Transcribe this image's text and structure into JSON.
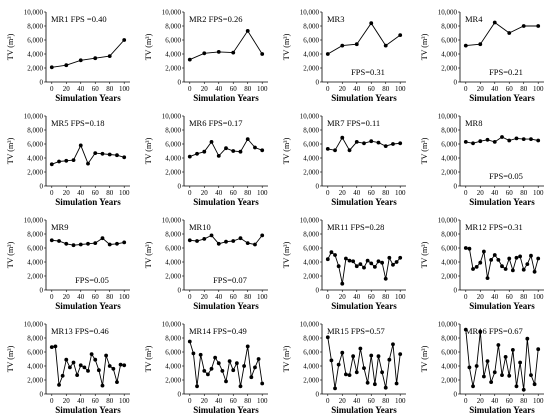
{
  "figure": {
    "y_axis_label": "TV (m³)",
    "x_axis_label": "Simulation Years",
    "y_tick_labels": [
      "0",
      "2,000",
      "4,000",
      "6,000",
      "8,000",
      "10,000"
    ],
    "x_tick_labels": [
      "0",
      "20",
      "40",
      "60",
      "80",
      "100"
    ]
  },
  "chart_data": [
    {
      "type": "line",
      "panel": "MR1",
      "fps": "FPS =0.40",
      "label_text": "MR1  FPS =0.40",
      "label_pos": "top-left",
      "x": [
        0,
        20,
        40,
        60,
        80,
        100
      ],
      "y": [
        2100,
        2400,
        3100,
        3400,
        3700,
        6000
      ],
      "xlabel": "Simulation Years",
      "ylabel": "TV (m³)",
      "xlim": [
        -8,
        108
      ],
      "ylim": [
        0,
        10000
      ],
      "grid": false
    },
    {
      "type": "line",
      "panel": "MR2",
      "fps": "FPS=0.26",
      "label_text": "MR2  FPS=0.26",
      "label_pos": "top-left",
      "x": [
        0,
        20,
        40,
        60,
        80,
        100
      ],
      "y": [
        3200,
        4100,
        4300,
        4200,
        7300,
        4000
      ],
      "xlabel": "Simulation Years",
      "ylabel": "TV (m³)",
      "xlim": [
        -8,
        108
      ],
      "ylim": [
        0,
        10000
      ],
      "grid": false
    },
    {
      "type": "line",
      "panel": "MR3",
      "fps": "FPS=0.31",
      "label_text": "MR3",
      "fps_pos": "bottom",
      "label_pos": "top-left",
      "x": [
        0,
        20,
        40,
        60,
        80,
        100
      ],
      "y": [
        4000,
        5200,
        5400,
        8400,
        5200,
        6700
      ],
      "xlabel": "Simulation Years",
      "ylabel": "TV (m³)",
      "xlim": [
        -8,
        108
      ],
      "ylim": [
        0,
        10000
      ],
      "grid": false
    },
    {
      "type": "line",
      "panel": "MR4",
      "fps": "FPS=0.21",
      "label_text": "MR4",
      "fps_pos": "bottom",
      "label_pos": "top-left",
      "x": [
        0,
        20,
        40,
        60,
        80,
        100
      ],
      "y": [
        5200,
        5400,
        8500,
        7000,
        8000,
        8000
      ],
      "xlabel": "Simulation Years",
      "ylabel": "TV (m³)",
      "xlim": [
        -8,
        108
      ],
      "ylim": [
        0,
        10000
      ],
      "grid": false
    },
    {
      "type": "line",
      "panel": "MR5",
      "fps": "FPS=0.18",
      "label_text": "MR5  FPS=0.18",
      "label_pos": "top-left",
      "x": [
        0,
        10,
        20,
        30,
        40,
        50,
        60,
        70,
        80,
        90,
        100
      ],
      "y": [
        3100,
        3500,
        3600,
        3700,
        5800,
        3200,
        4700,
        4600,
        4500,
        4400,
        4100
      ],
      "xlabel": "Simulation Years",
      "ylabel": "TV (m³)",
      "xlim": [
        -8,
        108
      ],
      "ylim": [
        0,
        10000
      ],
      "grid": false
    },
    {
      "type": "line",
      "panel": "MR6",
      "fps": "FPS=0.17",
      "label_text": "MR6  FPS=0.17",
      "label_pos": "top-left",
      "x": [
        0,
        10,
        20,
        30,
        40,
        50,
        60,
        70,
        80,
        90,
        100
      ],
      "y": [
        4200,
        4600,
        4900,
        6300,
        4300,
        5400,
        5000,
        4900,
        6700,
        5500,
        5100
      ],
      "xlabel": "Simulation Years",
      "ylabel": "TV (m³)",
      "xlim": [
        -8,
        108
      ],
      "ylim": [
        0,
        10000
      ],
      "grid": false
    },
    {
      "type": "line",
      "panel": "MR7",
      "fps": "FPS=0.11",
      "label_text": "MR7  FPS=0.11",
      "label_pos": "top-left",
      "x": [
        0,
        10,
        20,
        30,
        40,
        50,
        60,
        70,
        80,
        90,
        100
      ],
      "y": [
        5300,
        5100,
        6900,
        5100,
        6300,
        6100,
        6400,
        6200,
        5700,
        6000,
        6100
      ],
      "xlabel": "Simulation Years",
      "ylabel": "TV (m³)",
      "xlim": [
        -8,
        108
      ],
      "ylim": [
        0,
        10000
      ],
      "grid": false
    },
    {
      "type": "line",
      "panel": "MR8",
      "fps": "FPS=0.05",
      "label_text": "MR8",
      "fps_pos": "bottom",
      "label_pos": "top-left",
      "x": [
        0,
        10,
        20,
        30,
        40,
        50,
        60,
        70,
        80,
        90,
        100
      ],
      "y": [
        6300,
        6100,
        6400,
        6600,
        6300,
        7000,
        6500,
        6800,
        6700,
        6700,
        6500
      ],
      "xlabel": "Simulation Years",
      "ylabel": "TV (m³)",
      "xlim": [
        -8,
        108
      ],
      "ylim": [
        0,
        10000
      ],
      "grid": false
    },
    {
      "type": "line",
      "panel": "MR9",
      "fps": "FPS=0.05",
      "label_text": "MR9",
      "fps_pos": "bottom",
      "label_pos": "top-left",
      "x": [
        0,
        10,
        20,
        30,
        40,
        50,
        60,
        70,
        80,
        90,
        100
      ],
      "y": [
        7100,
        7000,
        6600,
        6400,
        6500,
        6600,
        6700,
        7400,
        6500,
        6600,
        6800
      ],
      "xlabel": "Simulation Years",
      "ylabel": "TV (m³)",
      "xlim": [
        -8,
        108
      ],
      "ylim": [
        0,
        10000
      ],
      "grid": false
    },
    {
      "type": "line",
      "panel": "MR10",
      "fps": "FPS=0.07",
      "label_text": "MR10",
      "fps_pos": "bottom",
      "label_pos": "top-left",
      "x": [
        0,
        10,
        20,
        30,
        40,
        50,
        60,
        70,
        80,
        90,
        100
      ],
      "y": [
        7100,
        7000,
        7300,
        7800,
        6600,
        6900,
        7000,
        7400,
        6700,
        6500,
        7800
      ],
      "xlabel": "Simulation Years",
      "ylabel": "TV (m³)",
      "xlim": [
        -8,
        108
      ],
      "ylim": [
        0,
        10000
      ],
      "grid": false
    },
    {
      "type": "line",
      "panel": "MR11",
      "fps": "FPS=0.28",
      "label_text": "MR11  FPS=0.28",
      "label_pos": "top-left",
      "x": [
        0,
        5,
        10,
        15,
        20,
        25,
        30,
        35,
        40,
        45,
        50,
        55,
        60,
        65,
        70,
        75,
        80,
        85,
        90,
        95,
        100
      ],
      "y": [
        4400,
        5400,
        5000,
        3400,
        900,
        4500,
        4200,
        4100,
        3400,
        3700,
        3200,
        4200,
        3800,
        3300,
        4100,
        3900,
        1600,
        4600,
        3600,
        4000,
        4600
      ],
      "xlabel": "Simulation Years",
      "ylabel": "TV (m³)",
      "xlim": [
        -8,
        108
      ],
      "ylim": [
        0,
        10000
      ],
      "grid": false
    },
    {
      "type": "line",
      "panel": "MR12",
      "fps": "FPS=0.31",
      "label_text": "MR12  FPS=0.31",
      "label_pos": "top-left",
      "x": [
        0,
        5,
        10,
        15,
        20,
        25,
        30,
        35,
        40,
        45,
        50,
        55,
        60,
        65,
        70,
        75,
        80,
        85,
        90,
        95,
        100
      ],
      "y": [
        6000,
        5900,
        3000,
        3300,
        3900,
        5500,
        1700,
        4300,
        5000,
        4300,
        3400,
        3000,
        4500,
        2800,
        4600,
        4800,
        2900,
        3700,
        4900,
        2600,
        4500
      ],
      "xlabel": "Simulation Years",
      "ylabel": "TV (m³)",
      "xlim": [
        -8,
        108
      ],
      "ylim": [
        0,
        10000
      ],
      "grid": false
    },
    {
      "type": "line",
      "panel": "MR13",
      "fps": "FPS=0.46",
      "label_text": "MR13  FPS=0.46",
      "label_pos": "top-left",
      "x": [
        0,
        5,
        10,
        15,
        20,
        25,
        30,
        35,
        40,
        45,
        50,
        55,
        60,
        65,
        70,
        75,
        80,
        85,
        90,
        95,
        100
      ],
      "y": [
        6700,
        6800,
        1300,
        2600,
        4900,
        3800,
        4500,
        2700,
        4100,
        3800,
        3300,
        5700,
        4900,
        3400,
        1200,
        5500,
        4000,
        3600,
        1700,
        4200,
        4100
      ],
      "xlabel": "Simulation Years",
      "ylabel": "TV (m³)",
      "xlim": [
        -8,
        108
      ],
      "ylim": [
        0,
        10000
      ],
      "grid": false
    },
    {
      "type": "line",
      "panel": "MR14",
      "fps": "FPS=0.49",
      "label_text": "MR14  FPS=0.49",
      "label_pos": "top-left",
      "x": [
        0,
        5,
        10,
        15,
        20,
        25,
        30,
        35,
        40,
        45,
        50,
        55,
        60,
        65,
        70,
        75,
        80,
        85,
        90,
        95,
        100
      ],
      "y": [
        7500,
        5800,
        1100,
        5600,
        3300,
        2800,
        3600,
        5200,
        4400,
        3300,
        1800,
        4700,
        3400,
        4400,
        1100,
        4000,
        6800,
        2400,
        3800,
        5000,
        1500
      ],
      "xlabel": "Simulation Years",
      "ylabel": "TV (m³)",
      "xlim": [
        -8,
        108
      ],
      "ylim": [
        0,
        10000
      ],
      "grid": false
    },
    {
      "type": "line",
      "panel": "MR15",
      "fps": "FPS=0.57",
      "label_text": "MR15  FPS=0.57",
      "label_pos": "top-left",
      "x": [
        0,
        5,
        10,
        15,
        20,
        25,
        30,
        35,
        40,
        45,
        50,
        55,
        60,
        65,
        70,
        75,
        80,
        85,
        90,
        95,
        100
      ],
      "y": [
        8100,
        4800,
        800,
        4200,
        5900,
        2800,
        2700,
        5400,
        3100,
        6500,
        3700,
        1600,
        5500,
        1400,
        5400,
        3100,
        900,
        4900,
        7100,
        1500,
        5700
      ],
      "xlabel": "Simulation Years",
      "ylabel": "TV (m³)",
      "xlim": [
        -8,
        108
      ],
      "ylim": [
        0,
        10000
      ],
      "grid": false
    },
    {
      "type": "line",
      "panel": "MR16",
      "fps": "FPS=0.67",
      "label_text": "MR16  FPS=0.67",
      "label_pos": "top-left",
      "x": [
        0,
        5,
        10,
        15,
        20,
        25,
        30,
        35,
        40,
        45,
        50,
        55,
        60,
        65,
        70,
        75,
        80,
        85,
        90,
        95,
        100
      ],
      "y": [
        9200,
        3800,
        1100,
        4000,
        8900,
        2500,
        4700,
        1700,
        3100,
        7000,
        2700,
        5300,
        2600,
        6300,
        1100,
        4500,
        600,
        7900,
        2700,
        1400,
        6400
      ],
      "xlabel": "Simulation Years",
      "ylabel": "TV (m³)",
      "xlim": [
        -8,
        108
      ],
      "ylim": [
        0,
        10000
      ],
      "grid": false
    }
  ]
}
